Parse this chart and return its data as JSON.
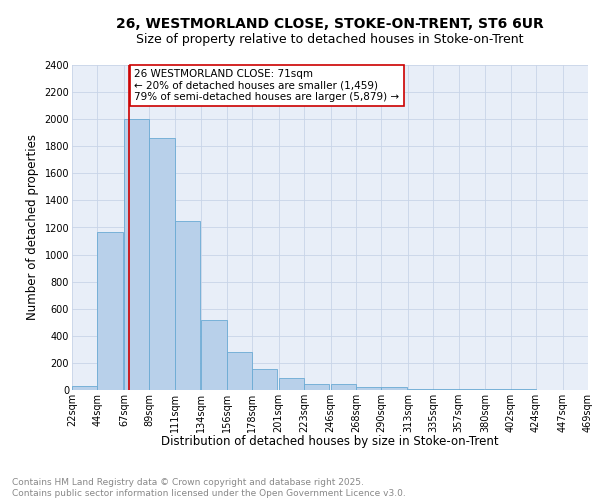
{
  "title1": "26, WESTMORLAND CLOSE, STOKE-ON-TRENT, ST6 6UR",
  "title2": "Size of property relative to detached houses in Stoke-on-Trent",
  "xlabel": "Distribution of detached houses by size in Stoke-on-Trent",
  "ylabel": "Number of detached properties",
  "bin_left_edges": [
    22,
    44,
    67,
    89,
    111,
    134,
    156,
    178,
    201,
    223,
    246,
    268,
    290,
    313,
    335,
    357,
    380,
    402,
    424,
    447
  ],
  "bin_width": 22,
  "bar_heights": [
    30,
    1170,
    2000,
    1860,
    1250,
    520,
    280,
    155,
    90,
    45,
    45,
    20,
    20,
    10,
    5,
    5,
    5,
    5,
    2,
    2
  ],
  "bar_color": "#b8d0ea",
  "bar_edge_color": "#6aaad4",
  "property_size": 71,
  "vline_color": "#cc0000",
  "annotation_text": "26 WESTMORLAND CLOSE: 71sqm\n← 20% of detached houses are smaller (1,459)\n79% of semi-detached houses are larger (5,879) →",
  "annotation_box_color": "#ffffff",
  "annotation_edge_color": "#cc0000",
  "ylim": [
    0,
    2400
  ],
  "yticks": [
    0,
    200,
    400,
    600,
    800,
    1000,
    1200,
    1400,
    1600,
    1800,
    2000,
    2200,
    2400
  ],
  "xtick_labels": [
    "22sqm",
    "44sqm",
    "67sqm",
    "89sqm",
    "111sqm",
    "134sqm",
    "156sqm",
    "178sqm",
    "201sqm",
    "223sqm",
    "246sqm",
    "268sqm",
    "290sqm",
    "313sqm",
    "335sqm",
    "357sqm",
    "380sqm",
    "402sqm",
    "424sqm",
    "447sqm",
    "469sqm"
  ],
  "grid_color": "#c8d4e8",
  "bg_color": "#e8eef8",
  "footer_text": "Contains HM Land Registry data © Crown copyright and database right 2025.\nContains public sector information licensed under the Open Government Licence v3.0.",
  "title1_fontsize": 10,
  "title2_fontsize": 9,
  "xlabel_fontsize": 8.5,
  "ylabel_fontsize": 8.5,
  "tick_fontsize": 7,
  "annotation_fontsize": 7.5,
  "footer_fontsize": 6.5
}
